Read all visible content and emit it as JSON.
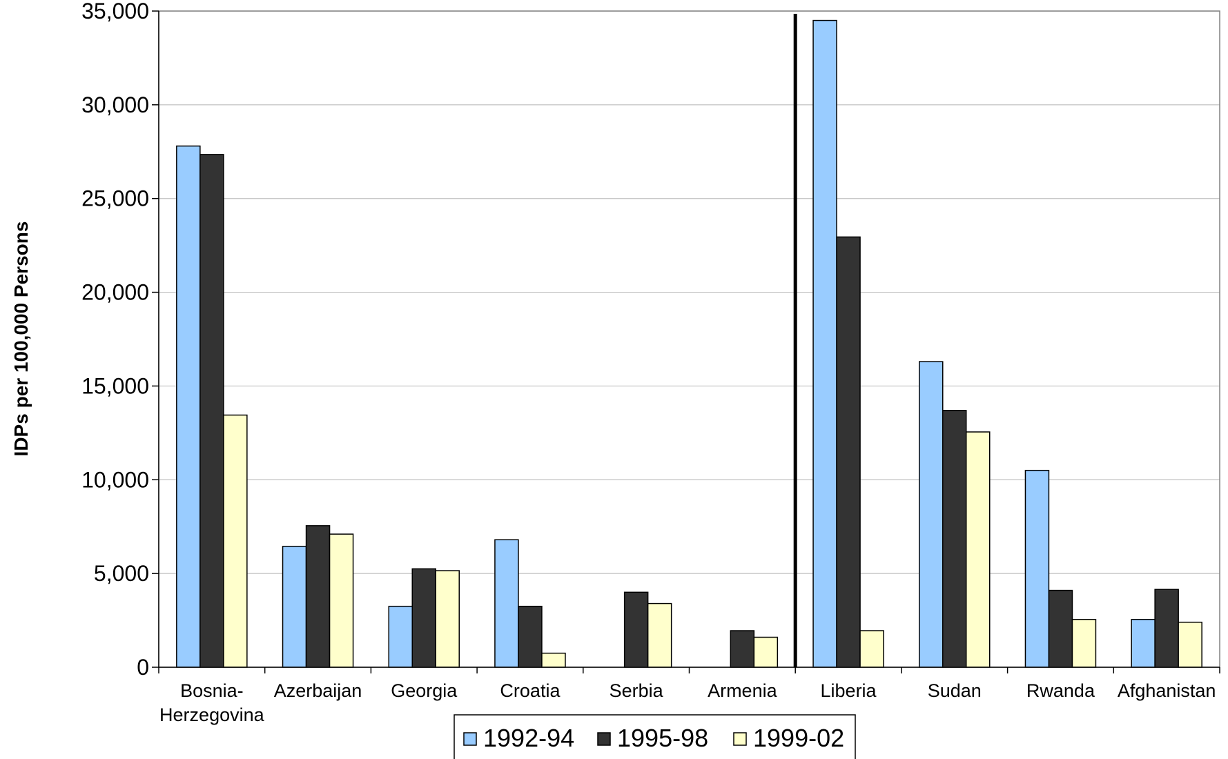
{
  "chart_data": {
    "type": "bar",
    "title": "",
    "xlabel": "",
    "ylabel": "IDPs per 100,000 Persons",
    "ylim": [
      0,
      35000
    ],
    "yticks": [
      0,
      5000,
      10000,
      15000,
      20000,
      25000,
      30000,
      35000
    ],
    "ytick_labels": [
      "0",
      "5,000",
      "10,000",
      "15,000",
      "20,000",
      "25,000",
      "30,000",
      "35,000"
    ],
    "grid": true,
    "legend_position": "bottom",
    "categories": [
      [
        "Bosnia-",
        "Herzegovina"
      ],
      [
        "Azerbaijan"
      ],
      [
        "Georgia"
      ],
      [
        "Croatia"
      ],
      [
        "Serbia"
      ],
      [
        "Armenia"
      ],
      [
        "Liberia"
      ],
      [
        "Sudan"
      ],
      [
        "Rwanda"
      ],
      [
        "Afghanistan"
      ]
    ],
    "divider_after_category": 5,
    "series": [
      {
        "name": "1992-94",
        "color": "#99CCFF",
        "values": [
          27800,
          6450,
          3250,
          6800,
          null,
          null,
          34500,
          16300,
          10500,
          2550
        ]
      },
      {
        "name": "1995-98",
        "color": "#333333",
        "values": [
          27350,
          7550,
          5250,
          3250,
          4000,
          1950,
          22950,
          13700,
          4100,
          4150
        ]
      },
      {
        "name": "1999-02",
        "color": "#FFFFCC",
        "values": [
          13450,
          7100,
          5150,
          750,
          3400,
          1600,
          1950,
          12550,
          2550,
          2400
        ]
      }
    ]
  }
}
